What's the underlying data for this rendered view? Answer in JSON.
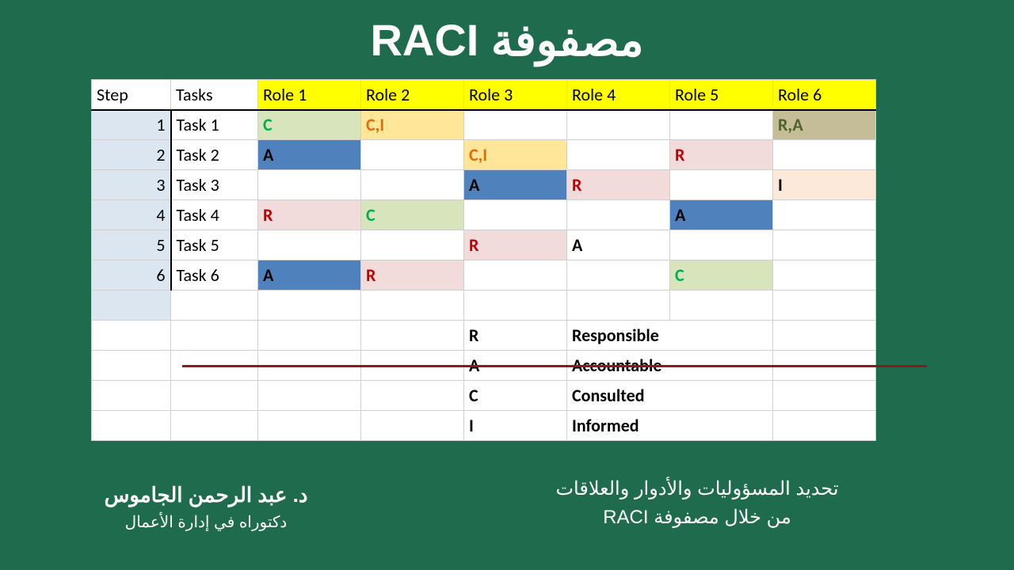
{
  "title": "مصفوفة RACI",
  "table": {
    "headers": {
      "step": "Step",
      "tasks": "Tasks",
      "role1": "Role 1",
      "role2": "Role 2",
      "role3": "Role 3",
      "role4": "Role 4",
      "role5": "Role 5",
      "role6": "Role 6"
    },
    "rows": [
      {
        "step": "1",
        "task": "Task 1",
        "cells": [
          {
            "v": "C",
            "bg": "c-green-bg",
            "t": "t-green"
          },
          {
            "v": "C,I",
            "bg": "c-yel-bg",
            "t": "t-orange"
          },
          {
            "v": "",
            "bg": "",
            "t": ""
          },
          {
            "v": "",
            "bg": "",
            "t": ""
          },
          {
            "v": "",
            "bg": "",
            "t": ""
          },
          {
            "v": "R,A",
            "bg": "c-olive-bg",
            "t": "t-olive"
          }
        ]
      },
      {
        "step": "2",
        "task": "Task 2",
        "cells": [
          {
            "v": "A",
            "bg": "c-teal-bg",
            "t": "t-black"
          },
          {
            "v": "",
            "bg": "",
            "t": ""
          },
          {
            "v": "C,I",
            "bg": "c-yel-bg",
            "t": "t-orange"
          },
          {
            "v": "",
            "bg": "",
            "t": ""
          },
          {
            "v": "R",
            "bg": "c-pink-bg",
            "t": "t-red"
          },
          {
            "v": "",
            "bg": "",
            "t": ""
          }
        ]
      },
      {
        "step": "3",
        "task": "Task 3",
        "cells": [
          {
            "v": "",
            "bg": "",
            "t": ""
          },
          {
            "v": "",
            "bg": "",
            "t": ""
          },
          {
            "v": "A",
            "bg": "c-teal-bg",
            "t": "t-black"
          },
          {
            "v": "R",
            "bg": "c-pink-bg",
            "t": "t-red"
          },
          {
            "v": "",
            "bg": "",
            "t": ""
          },
          {
            "v": "I",
            "bg": "c-orange-bg",
            "t": "t-black"
          }
        ]
      },
      {
        "step": "4",
        "task": "Task 4",
        "cells": [
          {
            "v": "R",
            "bg": "c-pink-bg",
            "t": "t-red"
          },
          {
            "v": "C",
            "bg": "c-mint-bg",
            "t": "t-green"
          },
          {
            "v": "",
            "bg": "",
            "t": ""
          },
          {
            "v": "",
            "bg": "",
            "t": ""
          },
          {
            "v": "A",
            "bg": "c-teal-bg",
            "t": "t-black"
          },
          {
            "v": "",
            "bg": "",
            "t": ""
          }
        ]
      },
      {
        "step": "5",
        "task": "Task 5",
        "cells": [
          {
            "v": "",
            "bg": "",
            "t": ""
          },
          {
            "v": "",
            "bg": "",
            "t": ""
          },
          {
            "v": "R",
            "bg": "c-pink-bg",
            "t": "t-red"
          },
          {
            "v": "A",
            "bg": "",
            "t": "t-black"
          },
          {
            "v": "",
            "bg": "",
            "t": ""
          },
          {
            "v": "",
            "bg": "",
            "t": ""
          }
        ]
      },
      {
        "step": "6",
        "task": "Task 6",
        "cells": [
          {
            "v": "A",
            "bg": "c-teal-bg",
            "t": "t-black"
          },
          {
            "v": "R",
            "bg": "c-pink-bg",
            "t": "t-red"
          },
          {
            "v": "",
            "bg": "",
            "t": ""
          },
          {
            "v": "",
            "bg": "",
            "t": ""
          },
          {
            "v": "C",
            "bg": "c-mint-bg",
            "t": "t-green"
          },
          {
            "v": "",
            "bg": "",
            "t": ""
          }
        ]
      }
    ],
    "legend": [
      {
        "code": "R",
        "label": "Responsible"
      },
      {
        "code": "A",
        "label": "Accountable"
      },
      {
        "code": "C",
        "label": "Consulted"
      },
      {
        "code": "I",
        "label": "Informed"
      }
    ]
  },
  "footer": {
    "author_name": "د. عبد الرحمن الجاموس",
    "author_title": "دكتوراه في إدارة الأعمال",
    "desc_line1": "تحديد المسؤوليات والأدوار والعلاقات",
    "desc_line2": "من خلال مصفوفة RACI"
  },
  "colors": {
    "page_bg": "#1e6b4e",
    "header_yellow": "#ffff00",
    "step_bg": "#dce6f1",
    "green_bg": "#d8e4bc",
    "yel_bg": "#ffe699",
    "teal_bg": "#4f81bd",
    "pink_bg": "#f2dcdb",
    "olive_bg": "#c4bd97",
    "orange_bg": "#fde9d9",
    "red_line": "#8b1a1a"
  }
}
